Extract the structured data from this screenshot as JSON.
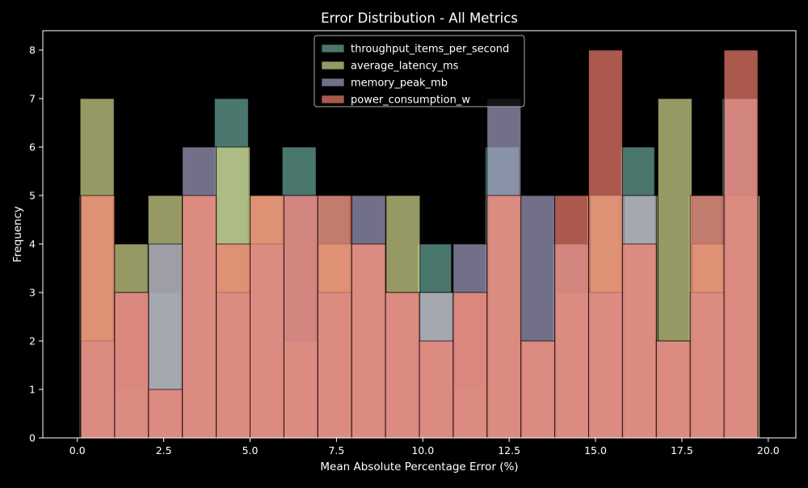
{
  "chart_data": {
    "type": "bar",
    "subtype": "overlapping-histogram",
    "title": "Error Distribution - All Metrics",
    "xlabel": "Mean Absolute Percentage Error (%)",
    "ylabel": "Frequency",
    "xlim": [
      -1.0,
      20.8
    ],
    "ylim": [
      0,
      8.4
    ],
    "xticks": [
      0.0,
      2.5,
      5.0,
      7.5,
      10.0,
      12.5,
      15.0,
      17.5,
      20.0
    ],
    "xtick_labels": [
      "0.0",
      "2.5",
      "5.0",
      "7.5",
      "10.0",
      "12.5",
      "15.0",
      "17.5",
      "20.0"
    ],
    "yticks": [
      0,
      1,
      2,
      3,
      4,
      5,
      6,
      7,
      8
    ],
    "ytick_labels": [
      "0",
      "1",
      "2",
      "3",
      "4",
      "5",
      "6",
      "7",
      "8"
    ],
    "grid": false,
    "legend_position": "top-center",
    "background": "#000000",
    "series": [
      {
        "name": "throughput_items_per_second",
        "color": "#6aaa9b",
        "bin_start": 0.05,
        "bin_width": 0.98,
        "values": [
          5,
          1,
          3,
          5,
          7,
          5,
          6,
          5,
          4,
          3,
          4,
          1,
          6,
          2,
          4,
          5,
          6,
          2,
          5,
          7
        ]
      },
      {
        "name": "average_latency_ms",
        "color": "#d6da8f",
        "bin_start": 0.08,
        "bin_width": 0.984,
        "values": [
          7,
          4,
          5,
          5,
          6,
          5,
          2,
          4,
          4,
          5,
          3,
          3,
          5,
          2,
          3,
          5,
          5,
          7,
          4,
          5
        ]
      },
      {
        "name": "memory_peak_mb",
        "color": "#a2a0c2",
        "bin_start": 0.1,
        "bin_width": 0.98,
        "values": [
          2,
          3,
          4,
          6,
          3,
          4,
          5,
          3,
          5,
          3,
          3,
          4,
          7,
          5,
          4,
          3,
          5,
          2,
          3,
          7
        ]
      },
      {
        "name": "power_consumption_w",
        "color": "#f37f6d",
        "bin_start": 0.1,
        "bin_width": 0.98,
        "values": [
          5,
          3,
          1,
          5,
          4,
          5,
          5,
          5,
          4,
          3,
          2,
          3,
          5,
          2,
          5,
          8,
          4,
          2,
          5,
          8
        ]
      }
    ]
  }
}
